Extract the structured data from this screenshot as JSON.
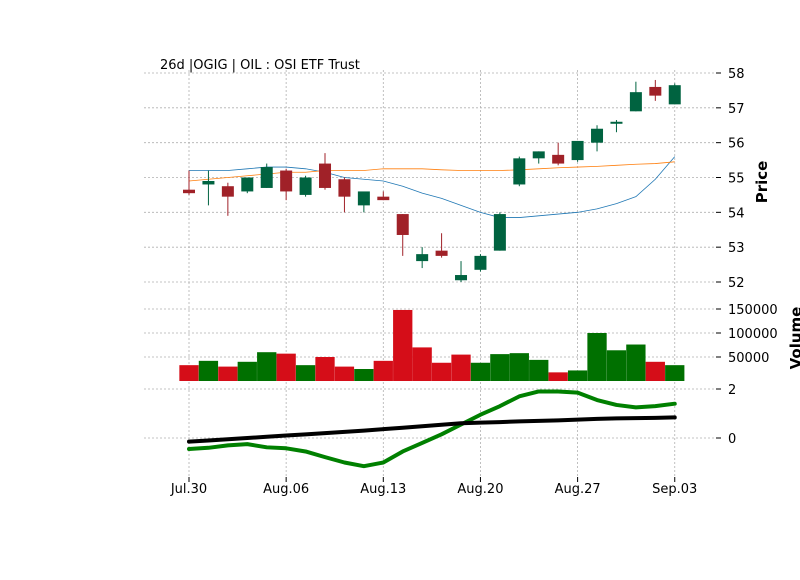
{
  "chart_data": {
    "type": "candlestick",
    "title": "26d |OGIG | OIL : OSI ETF Trust",
    "grid": true,
    "dates": [
      "Jul.30",
      "Jul.31",
      "Aug.01",
      "Aug.02",
      "Aug.03",
      "Aug.06",
      "Aug.07",
      "Aug.08",
      "Aug.09",
      "Aug.10",
      "Aug.13",
      "Aug.14",
      "Aug.15",
      "Aug.16",
      "Aug.17",
      "Aug.20",
      "Aug.21",
      "Aug.22",
      "Aug.23",
      "Aug.24",
      "Aug.27",
      "Aug.28",
      "Aug.29",
      "Aug.30",
      "Aug.31",
      "Sep.03"
    ],
    "x_tick_labels": [
      "Jul.30",
      "Aug.06",
      "Aug.13",
      "Aug.20",
      "Aug.27",
      "Sep.03"
    ],
    "price_panel": {
      "ylabel": "Price",
      "ylim": [
        51.9,
        58.2
      ],
      "yticks": [
        52,
        53,
        54,
        55,
        56,
        57,
        58
      ],
      "up_color": "#006340",
      "down_color": "#A02128",
      "candles": [
        {
          "open": 54.65,
          "high": 55.2,
          "low": 54.5,
          "close": 54.55
        },
        {
          "open": 54.8,
          "high": 55.2,
          "low": 54.2,
          "close": 54.9
        },
        {
          "open": 54.75,
          "high": 54.85,
          "low": 53.9,
          "close": 54.45
        },
        {
          "open": 54.6,
          "high": 55.0,
          "low": 54.55,
          "close": 55.0
        },
        {
          "open": 54.7,
          "high": 55.4,
          "low": 54.7,
          "close": 55.3
        },
        {
          "open": 55.2,
          "high": 55.25,
          "low": 54.35,
          "close": 54.6
        },
        {
          "open": 54.5,
          "high": 55.05,
          "low": 54.45,
          "close": 55.0
        },
        {
          "open": 55.4,
          "high": 55.7,
          "low": 54.65,
          "close": 54.7
        },
        {
          "open": 54.95,
          "high": 55.0,
          "low": 54.0,
          "close": 54.45
        },
        {
          "open": 54.2,
          "high": 54.55,
          "low": 54.0,
          "close": 54.6
        },
        {
          "open": 54.45,
          "high": 54.6,
          "low": 54.35,
          "close": 54.35
        },
        {
          "open": 53.95,
          "high": 53.95,
          "low": 52.75,
          "close": 53.35
        },
        {
          "open": 52.6,
          "high": 53.0,
          "low": 52.4,
          "close": 52.8
        },
        {
          "open": 52.9,
          "high": 53.4,
          "low": 52.7,
          "close": 52.75
        },
        {
          "open": 52.05,
          "high": 52.6,
          "low": 52.0,
          "close": 52.2
        },
        {
          "open": 52.35,
          "high": 52.8,
          "low": 52.3,
          "close": 52.75
        },
        {
          "open": 52.9,
          "high": 54.0,
          "low": 52.9,
          "close": 53.95
        },
        {
          "open": 54.8,
          "high": 55.6,
          "low": 54.75,
          "close": 55.55
        },
        {
          "open": 55.55,
          "high": 55.75,
          "low": 55.4,
          "close": 55.75
        },
        {
          "open": 55.65,
          "high": 56.0,
          "low": 55.35,
          "close": 55.4
        },
        {
          "open": 55.5,
          "high": 56.05,
          "low": 55.45,
          "close": 56.05
        },
        {
          "open": 56.0,
          "high": 56.5,
          "low": 55.75,
          "close": 56.4
        },
        {
          "open": 56.55,
          "high": 56.65,
          "low": 56.3,
          "close": 56.6
        },
        {
          "open": 56.9,
          "high": 57.75,
          "low": 56.9,
          "close": 57.45
        },
        {
          "open": 57.6,
          "high": 57.8,
          "low": 57.2,
          "close": 57.35
        },
        {
          "open": 57.1,
          "high": 57.7,
          "low": 57.1,
          "close": 57.65
        }
      ],
      "moving_averages": [
        {
          "color": "#1f77b4",
          "values": [
            55.2,
            55.2,
            55.2,
            55.25,
            55.3,
            55.3,
            55.25,
            55.15,
            55.0,
            54.95,
            54.9,
            54.75,
            54.55,
            54.4,
            54.2,
            54.0,
            53.85,
            53.85,
            53.9,
            53.95,
            54.0,
            54.1,
            54.25,
            54.45,
            54.95,
            55.6
          ]
        },
        {
          "color": "#ff7f0e",
          "values": [
            54.9,
            54.95,
            55.0,
            55.05,
            55.1,
            55.15,
            55.15,
            55.2,
            55.2,
            55.2,
            55.25,
            55.25,
            55.25,
            55.22,
            55.2,
            55.2,
            55.2,
            55.22,
            55.25,
            55.28,
            55.3,
            55.32,
            55.35,
            55.38,
            55.4,
            55.45
          ]
        }
      ]
    },
    "volume_panel": {
      "ylabel": "Volume",
      "ylim": [
        0,
        150000
      ],
      "yticks": [
        50000,
        100000,
        150000
      ],
      "up_color": "#007000",
      "down_color": "#D50D18",
      "values": [
        33000,
        42000,
        30000,
        40000,
        60000,
        57000,
        33000,
        50000,
        30000,
        25000,
        42000,
        148000,
        70000,
        38000,
        55000,
        38000,
        56000,
        58000,
        44000,
        18000,
        22000,
        100000,
        64000,
        76000,
        40000,
        33000
      ],
      "directions": [
        "down",
        "up",
        "down",
        "up",
        "up",
        "down",
        "up",
        "down",
        "down",
        "up",
        "down",
        "down",
        "down",
        "down",
        "down",
        "up",
        "up",
        "up",
        "up",
        "down",
        "up",
        "up",
        "up",
        "up",
        "down",
        "up"
      ]
    },
    "indicator_panel": {
      "yticks": [
        0,
        2
      ],
      "ylim": [
        -1.3,
        2.05
      ],
      "series": [
        {
          "color": "#008000",
          "values": [
            -0.45,
            -0.4,
            -0.3,
            -0.25,
            -0.38,
            -0.42,
            -0.55,
            -0.78,
            -1.0,
            -1.15,
            -1.0,
            -0.55,
            -0.2,
            0.15,
            0.55,
            0.95,
            1.3,
            1.7,
            1.9,
            1.9,
            1.85,
            1.55,
            1.35,
            1.25,
            1.3,
            1.4
          ]
        },
        {
          "color": "#000000",
          "values": [
            -0.15,
            -0.1,
            -0.05,
            0.0,
            0.05,
            0.1,
            0.15,
            0.2,
            0.25,
            0.3,
            0.36,
            0.42,
            0.48,
            0.54,
            0.6,
            0.63,
            0.65,
            0.68,
            0.7,
            0.72,
            0.75,
            0.78,
            0.8,
            0.81,
            0.82,
            0.84
          ]
        }
      ]
    }
  }
}
